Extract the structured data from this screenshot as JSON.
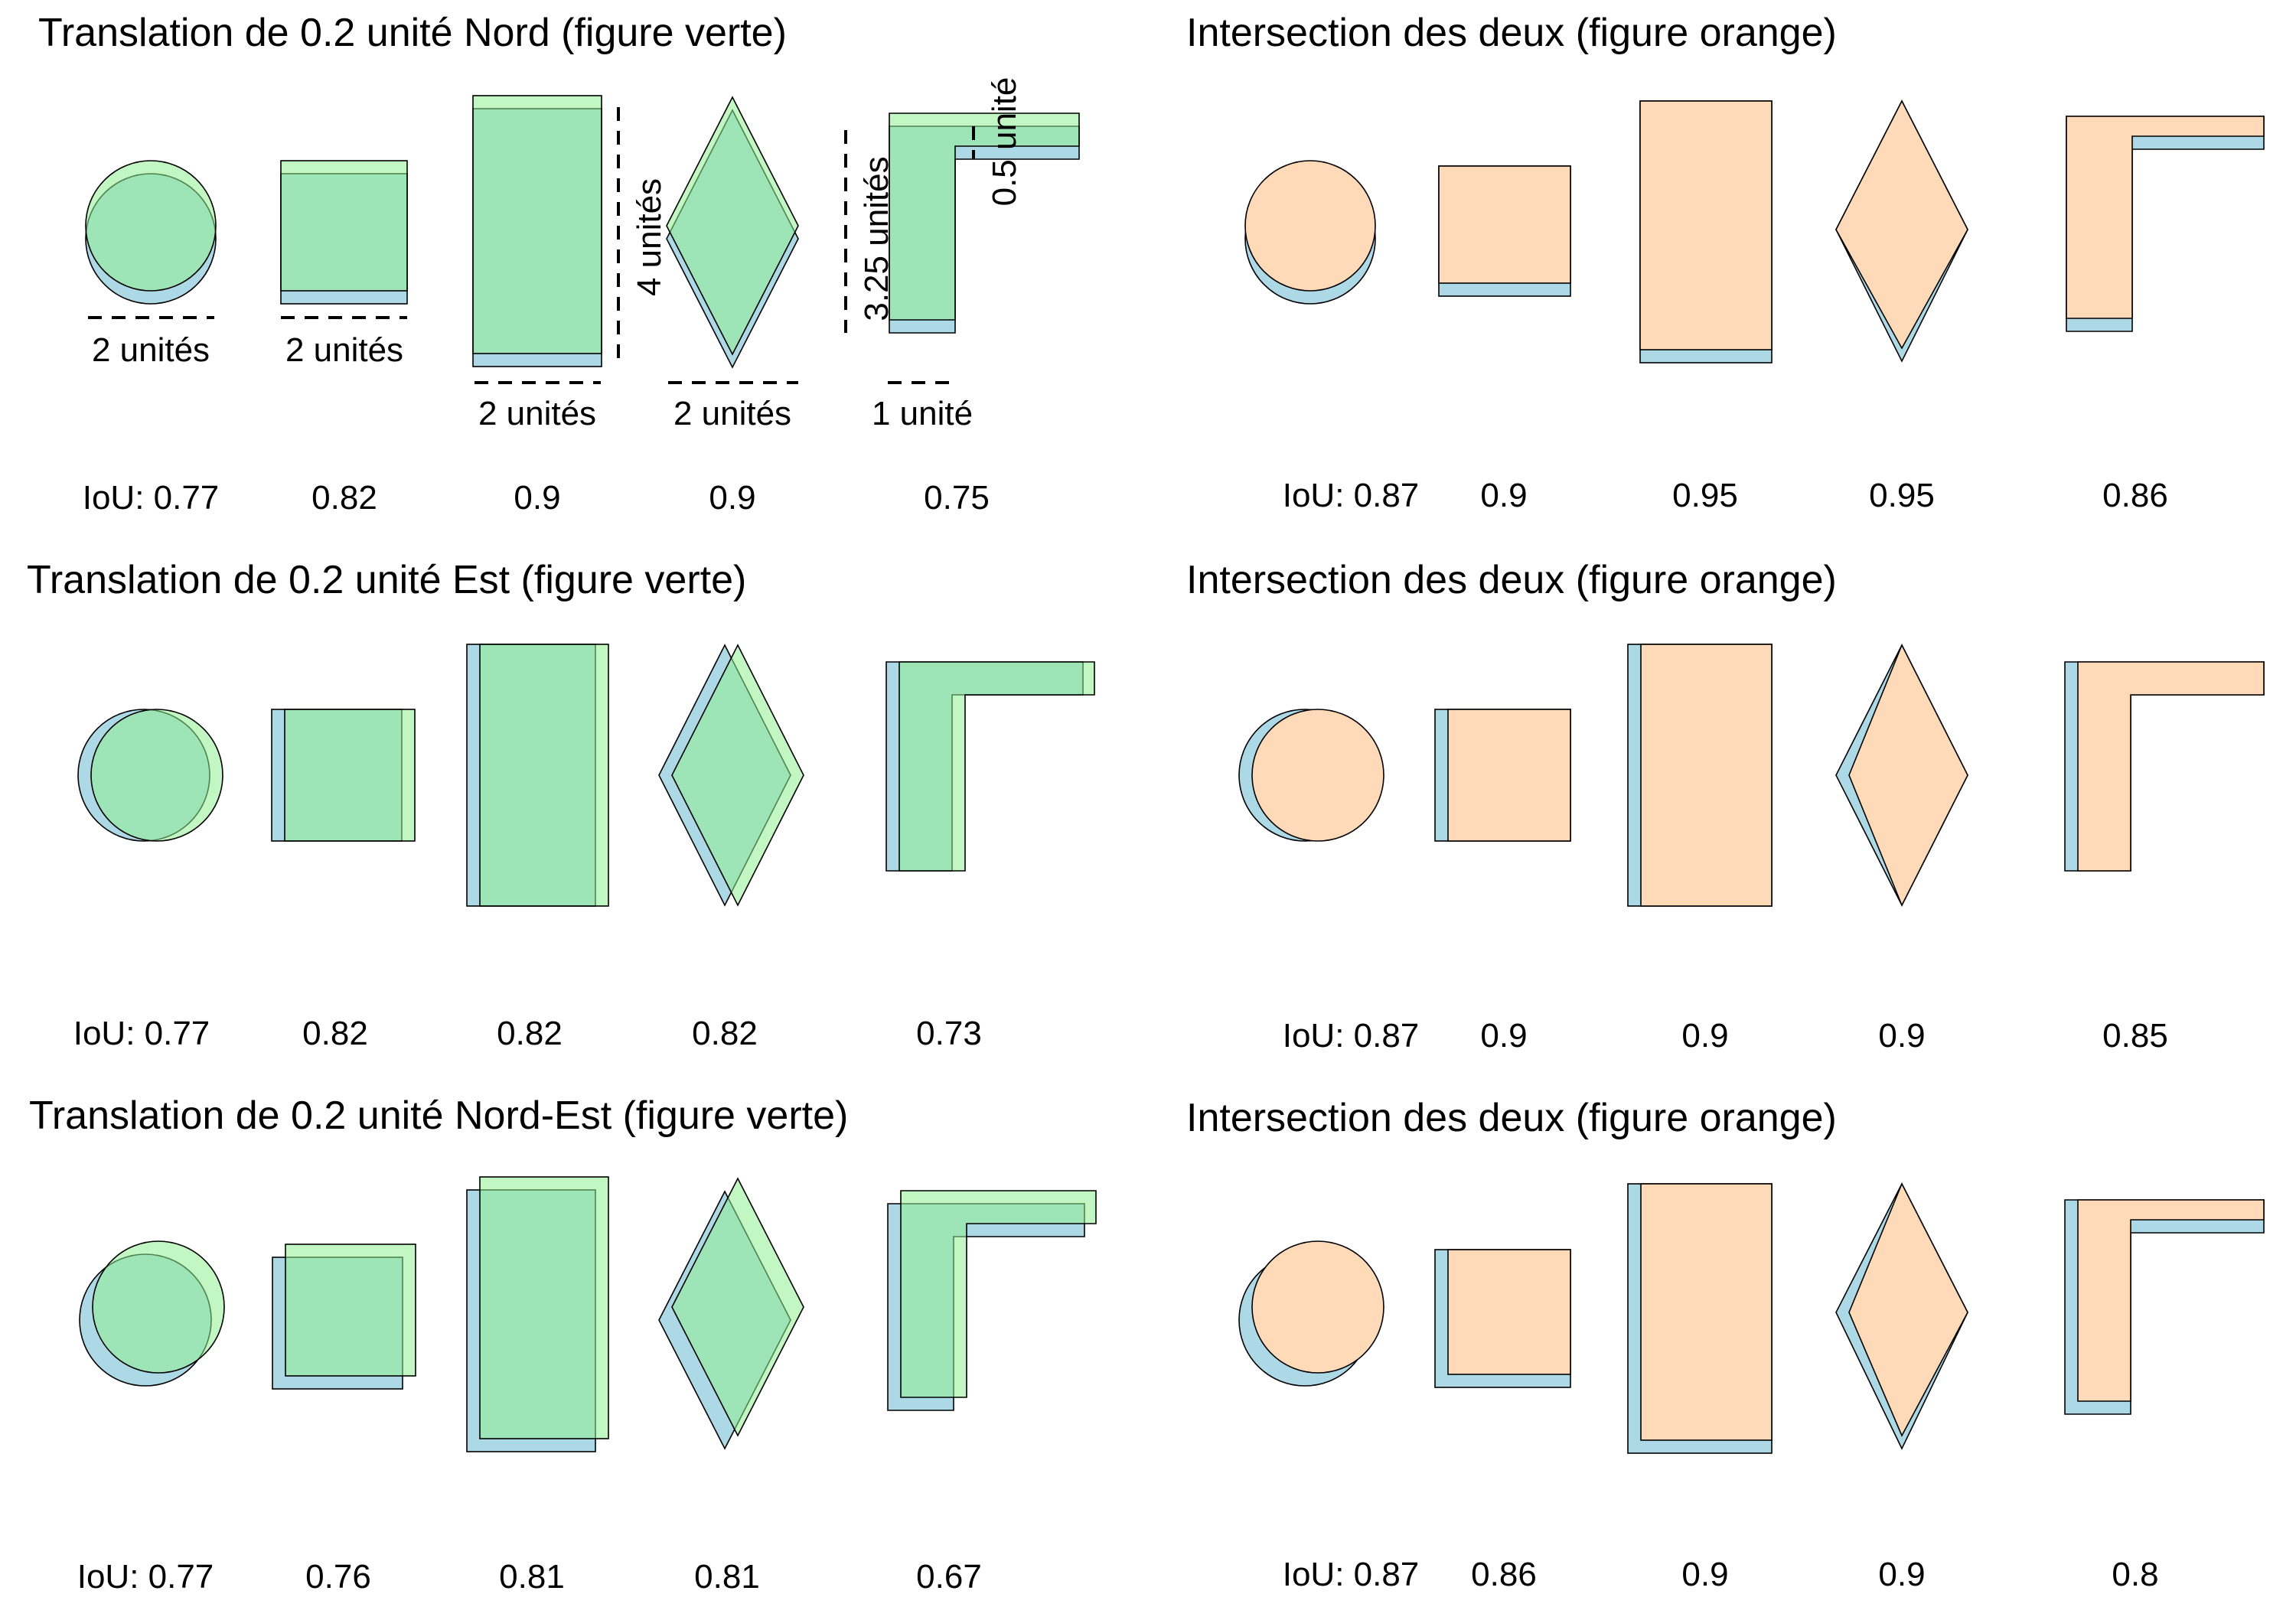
{
  "panels": [
    {
      "left_title": "Translation de 0.2 unité Nord (figure verte)",
      "right_title": "Intersection des deux (figure orange)",
      "left_iou": [
        "IoU: 0.77",
        "0.82",
        "0.9",
        "0.9",
        "0.75"
      ],
      "right_iou": [
        "IoU: 0.87",
        "0.9",
        "0.95",
        "0.95",
        "0.86"
      ]
    },
    {
      "left_title": "Translation de 0.2 unité Est (figure verte)",
      "right_title": "Intersection des deux (figure orange)",
      "left_iou": [
        "IoU: 0.77",
        "0.82",
        "0.82",
        "0.82",
        "0.73"
      ],
      "right_iou": [
        "IoU: 0.87",
        "0.9",
        "0.9",
        "0.9",
        "0.85"
      ]
    },
    {
      "left_title": "Translation de 0.2 unité Nord-Est (figure verte)",
      "right_title": "Intersection des deux (figure orange)",
      "left_iou": [
        "IoU: 0.77",
        "0.76",
        "0.81",
        "0.81",
        "0.67"
      ],
      "right_iou": [
        "IoU: 0.87",
        "0.86",
        "0.9",
        "0.9",
        "0.8"
      ]
    }
  ],
  "dimension_labels": {
    "circle_width": "2 unités",
    "square_width": "2 unités",
    "rectangle_width": "2 unités",
    "rectangle_height": "4 unités",
    "rhombus_width": "2 unités",
    "l_shape_width": "1 unité",
    "l_shape_height": "3.25 unités",
    "l_shape_arm": "0.5 unité"
  },
  "colors": {
    "original": "#add8e6",
    "translated": "#90ee90",
    "intersection": "#ffdab9"
  }
}
